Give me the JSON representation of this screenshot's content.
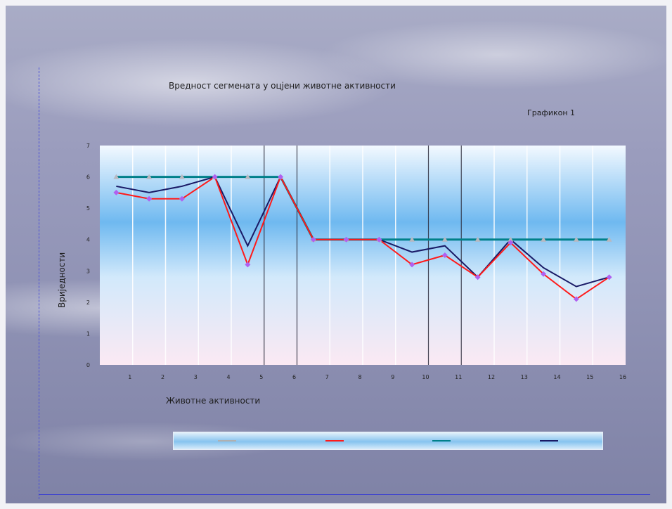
{
  "slide": {
    "chart_title": "Вредност сегмената у оцјени животне активности",
    "figure_label": "Графикон 1",
    "xlabel": "Животне активности",
    "ylabel": "Вриједности"
  },
  "chart_data": {
    "type": "line",
    "title": "Вредност сегмената у оцјени животне активности",
    "xlabel": "Животне активности",
    "ylabel": "Вриједности",
    "x": [
      1,
      2,
      3,
      4,
      5,
      6,
      7,
      8,
      9,
      10,
      11,
      12,
      13,
      14,
      15,
      16
    ],
    "ylim": [
      0,
      7
    ],
    "yticks": [
      0,
      1,
      2,
      3,
      4,
      5,
      6,
      7
    ],
    "grid": true,
    "legend_position": "bottom",
    "series": [
      {
        "color": "#b0b0b0",
        "marker": "triangle",
        "values": [
          6,
          6,
          6,
          6,
          6,
          6,
          4,
          4,
          4,
          4,
          4,
          4,
          4,
          4,
          4,
          4
        ]
      },
      {
        "color": "#ff1a1a",
        "marker": "diamond",
        "values": [
          5.5,
          5.3,
          5.3,
          6,
          3.2,
          6,
          4,
          4,
          4,
          3.2,
          3.5,
          2.8,
          3.9,
          2.9,
          2.1,
          2.8
        ]
      },
      {
        "color": "#00808a",
        "marker": "none",
        "values": [
          6,
          6,
          6,
          6,
          6,
          6,
          4,
          4,
          4,
          4,
          4,
          4,
          4,
          4,
          4,
          4
        ]
      },
      {
        "color": "#1a1a66",
        "marker": "none",
        "values": [
          5.7,
          5.5,
          5.7,
          6,
          3.8,
          6,
          4,
          4,
          4,
          3.6,
          3.8,
          2.8,
          4,
          3.1,
          2.5,
          2.8
        ]
      }
    ]
  }
}
